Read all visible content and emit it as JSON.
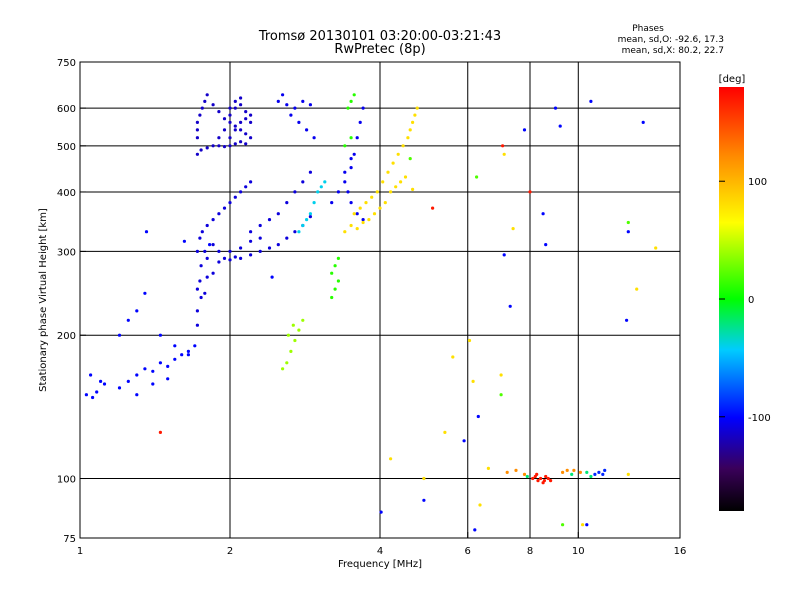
{
  "chart_data": {
    "type": "scatter",
    "title_line1": "Tromsø 20130101 03:20:00-03:21:43",
    "title_line2": "RwPretec (8p)",
    "stats": {
      "heading": "Phases",
      "line_o": "mean, sd,O: -92.6, 17.3",
      "line_x": "mean, sd,X:  80.2, 22.7"
    },
    "xlabel": "Frequency [MHz]",
    "ylabel": "Stationary phase Virtual Height [km]",
    "x_scale": "log",
    "y_scale": "log",
    "xlim": [
      1,
      16
    ],
    "ylim": [
      75,
      750
    ],
    "x_ticks": [
      1,
      2,
      4,
      6,
      8,
      10,
      16
    ],
    "x_tick_labels": [
      "1",
      "2",
      "4",
      "6",
      "8",
      "10",
      "16"
    ],
    "y_ticks": [
      75,
      100,
      200,
      300,
      400,
      500,
      600,
      750
    ],
    "y_tick_labels": [
      "75",
      "100",
      "200",
      "300",
      "400",
      "500",
      "600",
      "750"
    ],
    "grid_x": [
      2,
      4,
      6,
      8,
      10
    ],
    "grid_y": [
      100,
      200,
      300,
      400,
      500,
      600
    ],
    "colorbar": {
      "label": "[deg]",
      "range": [
        -180,
        180
      ],
      "ticks": [
        100,
        0,
        -100
      ],
      "tick_labels": [
        "100",
        "0",
        "-100"
      ]
    },
    "series": [
      {
        "phase": -100,
        "points": [
          [
            1.03,
            150
          ],
          [
            1.06,
            148
          ],
          [
            1.08,
            152
          ],
          [
            1.1,
            160
          ],
          [
            1.05,
            165
          ],
          [
            1.12,
            158
          ],
          [
            1.2,
            155
          ],
          [
            1.25,
            160
          ],
          [
            1.3,
            165
          ],
          [
            1.35,
            170
          ],
          [
            1.4,
            168
          ],
          [
            1.45,
            175
          ],
          [
            1.5,
            172
          ],
          [
            1.55,
            178
          ],
          [
            1.6,
            182
          ],
          [
            1.65,
            185
          ],
          [
            1.3,
            150
          ],
          [
            1.4,
            158
          ],
          [
            1.5,
            162
          ],
          [
            1.7,
            190
          ],
          [
            1.65,
            182
          ],
          [
            1.2,
            200
          ],
          [
            1.25,
            215
          ],
          [
            1.3,
            225
          ],
          [
            1.35,
            245
          ],
          [
            1.45,
            200
          ],
          [
            1.55,
            190
          ]
        ]
      },
      {
        "phase": -110,
        "points": [
          [
            1.72,
            210
          ],
          [
            1.72,
            225
          ],
          [
            1.75,
            240
          ],
          [
            1.78,
            245
          ],
          [
            1.72,
            250
          ],
          [
            1.74,
            260
          ],
          [
            1.8,
            265
          ],
          [
            1.85,
            270
          ],
          [
            1.9,
            285
          ],
          [
            1.95,
            290
          ],
          [
            2.0,
            288
          ],
          [
            2.05,
            292
          ],
          [
            2.1,
            290
          ],
          [
            2.2,
            295
          ],
          [
            2.3,
            300
          ],
          [
            2.4,
            305
          ],
          [
            2.5,
            310
          ],
          [
            2.6,
            320
          ],
          [
            2.7,
            330
          ],
          [
            2.8,
            340
          ],
          [
            2.9,
            355
          ],
          [
            1.75,
            280
          ],
          [
            1.8,
            290
          ],
          [
            1.78,
            300
          ],
          [
            1.85,
            310
          ],
          [
            1.9,
            300
          ],
          [
            2.0,
            300
          ],
          [
            2.1,
            305
          ],
          [
            2.2,
            315
          ],
          [
            1.72,
            300
          ],
          [
            1.74,
            320
          ],
          [
            1.76,
            330
          ],
          [
            1.8,
            340
          ],
          [
            1.85,
            350
          ],
          [
            1.9,
            360
          ],
          [
            1.95,
            370
          ],
          [
            2.0,
            380
          ],
          [
            2.05,
            390
          ],
          [
            2.1,
            400
          ],
          [
            2.15,
            410
          ],
          [
            2.2,
            420
          ],
          [
            2.3,
            340
          ],
          [
            2.4,
            350
          ],
          [
            2.5,
            360
          ],
          [
            2.6,
            380
          ],
          [
            2.7,
            400
          ],
          [
            2.8,
            420
          ],
          [
            2.9,
            440
          ],
          [
            2.2,
            330
          ],
          [
            2.3,
            320
          ]
        ]
      },
      {
        "phase": -115,
        "points": [
          [
            1.72,
            480
          ],
          [
            1.75,
            490
          ],
          [
            1.8,
            495
          ],
          [
            1.85,
            500
          ],
          [
            1.9,
            500
          ],
          [
            1.95,
            498
          ],
          [
            2.0,
            500
          ],
          [
            2.05,
            505
          ],
          [
            2.1,
            510
          ],
          [
            2.15,
            505
          ],
          [
            1.72,
            520
          ],
          [
            1.72,
            540
          ],
          [
            1.72,
            560
          ],
          [
            1.74,
            580
          ],
          [
            1.76,
            600
          ],
          [
            1.78,
            620
          ],
          [
            1.8,
            640
          ],
          [
            1.85,
            610
          ],
          [
            1.9,
            590
          ],
          [
            1.95,
            570
          ],
          [
            2.0,
            560
          ],
          [
            2.05,
            550
          ],
          [
            2.1,
            540
          ],
          [
            2.15,
            530
          ],
          [
            2.2,
            520
          ],
          [
            2.0,
            600
          ],
          [
            2.05,
            620
          ],
          [
            2.1,
            610
          ],
          [
            2.15,
            590
          ],
          [
            2.2,
            580
          ],
          [
            2.0,
            520
          ],
          [
            2.05,
            540
          ],
          [
            2.1,
            560
          ],
          [
            2.15,
            570
          ],
          [
            2.2,
            560
          ],
          [
            1.9,
            520
          ],
          [
            1.95,
            540
          ],
          [
            2.0,
            580
          ],
          [
            2.05,
            600
          ],
          [
            2.1,
            630
          ]
        ]
      },
      {
        "phase": -105,
        "points": [
          [
            2.5,
            620
          ],
          [
            2.6,
            610
          ],
          [
            2.7,
            600
          ],
          [
            2.8,
            620
          ],
          [
            2.9,
            610
          ],
          [
            2.55,
            640
          ],
          [
            2.65,
            580
          ],
          [
            2.75,
            560
          ],
          [
            2.85,
            540
          ],
          [
            2.95,
            520
          ],
          [
            3.4,
            420
          ],
          [
            3.5,
            450
          ],
          [
            3.55,
            480
          ],
          [
            3.6,
            520
          ],
          [
            3.65,
            560
          ],
          [
            3.7,
            600
          ],
          [
            3.45,
            400
          ],
          [
            3.5,
            380
          ],
          [
            3.6,
            360
          ],
          [
            3.7,
            350
          ],
          [
            3.2,
            380
          ],
          [
            3.3,
            400
          ],
          [
            3.4,
            440
          ],
          [
            3.5,
            470
          ]
        ]
      },
      {
        "phase": -40,
        "points": [
          [
            2.75,
            330
          ],
          [
            2.8,
            340
          ],
          [
            2.85,
            350
          ],
          [
            2.9,
            360
          ],
          [
            2.95,
            380
          ],
          [
            3.0,
            400
          ],
          [
            3.05,
            410
          ],
          [
            3.1,
            420
          ]
        ]
      },
      {
        "phase": 10,
        "points": [
          [
            3.2,
            240
          ],
          [
            3.25,
            250
          ],
          [
            3.3,
            260
          ],
          [
            3.2,
            270
          ],
          [
            3.25,
            280
          ],
          [
            3.3,
            290
          ],
          [
            3.4,
            500
          ],
          [
            3.5,
            520
          ],
          [
            3.45,
            600
          ],
          [
            3.5,
            620
          ],
          [
            3.55,
            640
          ]
        ]
      },
      {
        "phase": 40,
        "points": [
          [
            2.55,
            170
          ],
          [
            2.6,
            175
          ],
          [
            2.65,
            185
          ],
          [
            2.7,
            195
          ],
          [
            2.75,
            205
          ],
          [
            2.8,
            215
          ],
          [
            2.62,
            200
          ],
          [
            2.68,
            210
          ]
        ]
      },
      {
        "phase": 80,
        "points": [
          [
            3.4,
            330
          ],
          [
            3.5,
            340
          ],
          [
            3.6,
            335
          ],
          [
            3.7,
            345
          ],
          [
            3.8,
            350
          ],
          [
            3.9,
            360
          ],
          [
            4.0,
            370
          ],
          [
            4.1,
            380
          ],
          [
            4.2,
            400
          ],
          [
            4.3,
            410
          ],
          [
            4.4,
            420
          ],
          [
            4.5,
            430
          ],
          [
            3.55,
            360
          ],
          [
            3.65,
            370
          ],
          [
            3.75,
            380
          ],
          [
            3.85,
            390
          ],
          [
            3.95,
            400
          ],
          [
            4.05,
            420
          ],
          [
            4.15,
            440
          ],
          [
            4.25,
            460
          ],
          [
            4.35,
            480
          ],
          [
            4.45,
            500
          ],
          [
            4.55,
            520
          ],
          [
            4.6,
            540
          ],
          [
            4.65,
            560
          ],
          [
            4.7,
            580
          ],
          [
            4.75,
            600
          ]
        ]
      },
      {
        "phase": 170,
        "points": [
          [
            8.1,
            100
          ],
          [
            8.2,
            101
          ],
          [
            8.3,
            99
          ],
          [
            8.4,
            100
          ],
          [
            8.5,
            98
          ],
          [
            8.6,
            101
          ],
          [
            8.7,
            100
          ],
          [
            8.8,
            99
          ],
          [
            8.25,
            102
          ],
          [
            8.55,
            99
          ]
        ]
      },
      {
        "phase": 120,
        "points": [
          [
            7.2,
            103
          ],
          [
            7.5,
            104
          ],
          [
            7.8,
            102
          ],
          [
            9.3,
            103
          ],
          [
            9.5,
            104
          ],
          [
            9.8,
            104
          ],
          [
            10.1,
            103
          ]
        ]
      },
      {
        "phase": -20,
        "points": [
          [
            7.9,
            101
          ],
          [
            9.7,
            102
          ],
          [
            10.4,
            103
          ],
          [
            10.6,
            101
          ]
        ]
      },
      {
        "phase": -90,
        "points": [
          [
            10.8,
            102
          ],
          [
            11.0,
            103
          ],
          [
            11.2,
            102
          ],
          [
            11.3,
            104
          ]
        ]
      },
      {
        "phase": -100,
        "points": [
          [
            1.36,
            330
          ],
          [
            1.62,
            315
          ],
          [
            1.82,
            310
          ],
          [
            2.43,
            265
          ],
          [
            4.02,
            85
          ],
          [
            4.9,
            90
          ],
          [
            5.9,
            120
          ],
          [
            6.2,
            78
          ],
          [
            6.3,
            135
          ],
          [
            7.1,
            295
          ],
          [
            7.3,
            230
          ],
          [
            7.8,
            540
          ],
          [
            8.5,
            360
          ],
          [
            8.6,
            310
          ],
          [
            9.0,
            600
          ],
          [
            9.2,
            550
          ],
          [
            10.6,
            620
          ],
          [
            12.6,
            330
          ],
          [
            12.5,
            215
          ],
          [
            13.5,
            560
          ],
          [
            10.4,
            80
          ]
        ]
      },
      {
        "phase": 80,
        "points": [
          [
            4.2,
            110
          ],
          [
            4.65,
            405
          ],
          [
            4.9,
            100
          ],
          [
            5.4,
            125
          ],
          [
            5.6,
            180
          ],
          [
            6.05,
            195
          ],
          [
            6.15,
            160
          ],
          [
            7.0,
            165
          ],
          [
            7.4,
            335
          ],
          [
            7.1,
            480
          ],
          [
            6.6,
            105
          ],
          [
            6.35,
            88
          ],
          [
            10.2,
            80
          ],
          [
            13.1,
            250
          ],
          [
            14.3,
            305
          ],
          [
            12.6,
            102
          ]
        ]
      },
      {
        "phase": 20,
        "points": [
          [
            4.6,
            470
          ],
          [
            6.25,
            430
          ],
          [
            7.0,
            150
          ],
          [
            9.3,
            80
          ],
          [
            12.6,
            345
          ]
        ]
      },
      {
        "phase": 170,
        "points": [
          [
            1.45,
            125
          ],
          [
            5.1,
            370
          ],
          [
            7.05,
            500
          ],
          [
            8.0,
            400
          ]
        ]
      }
    ]
  }
}
